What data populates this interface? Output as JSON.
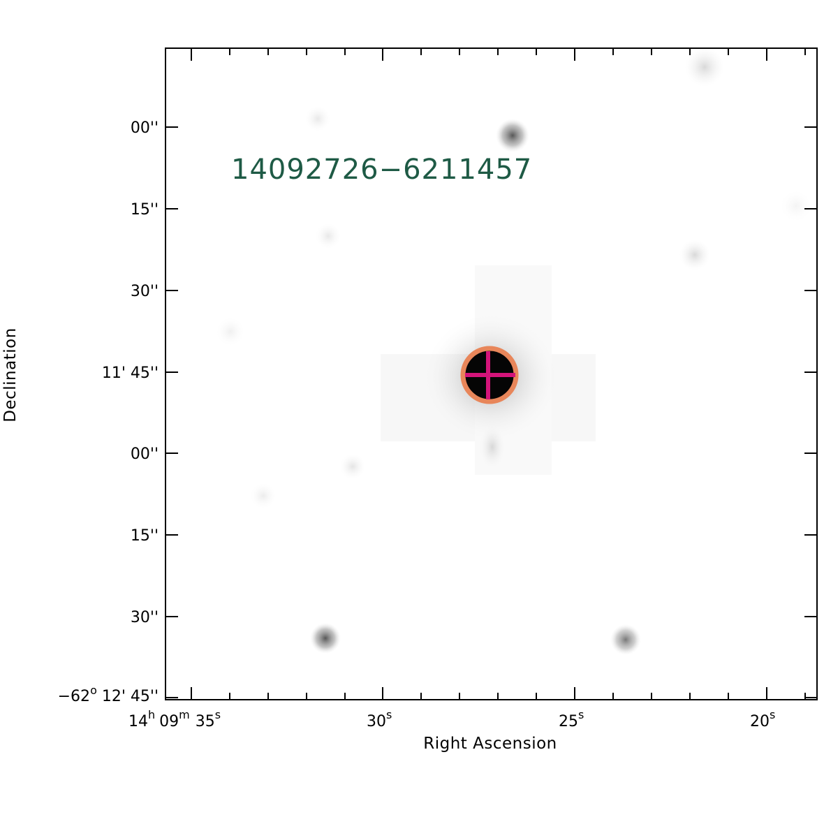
{
  "image": {
    "source_label": "14092726−6211457",
    "x_axis_label": "Right Ascension",
    "y_axis_label": "Declination",
    "ra_ticks": [
      {
        "h": "14",
        "m": "09",
        "s": "35"
      },
      {
        "s": "30"
      },
      {
        "s": "25"
      },
      {
        "s": "20"
      }
    ],
    "dec_ticks": [
      {
        "arcsec": "00''"
      },
      {
        "arcsec": "15''"
      },
      {
        "arcsec": "30''"
      },
      {
        "arcmin": "11'",
        "arcsec": "45''"
      },
      {
        "arcsec": "00''"
      },
      {
        "arcsec": "15''"
      },
      {
        "arcsec": "30''"
      },
      {
        "deg": "−62",
        "arcmin": "12'",
        "arcsec": "45''"
      }
    ],
    "units": {
      "hours": "h",
      "minutes": "m",
      "seconds": "s",
      "degrees": "o"
    },
    "colors": {
      "label_green": "#1e5a45",
      "circle_orange": "#e8865a",
      "cross_magenta": "#d4147a",
      "axis": "#000000"
    }
  }
}
